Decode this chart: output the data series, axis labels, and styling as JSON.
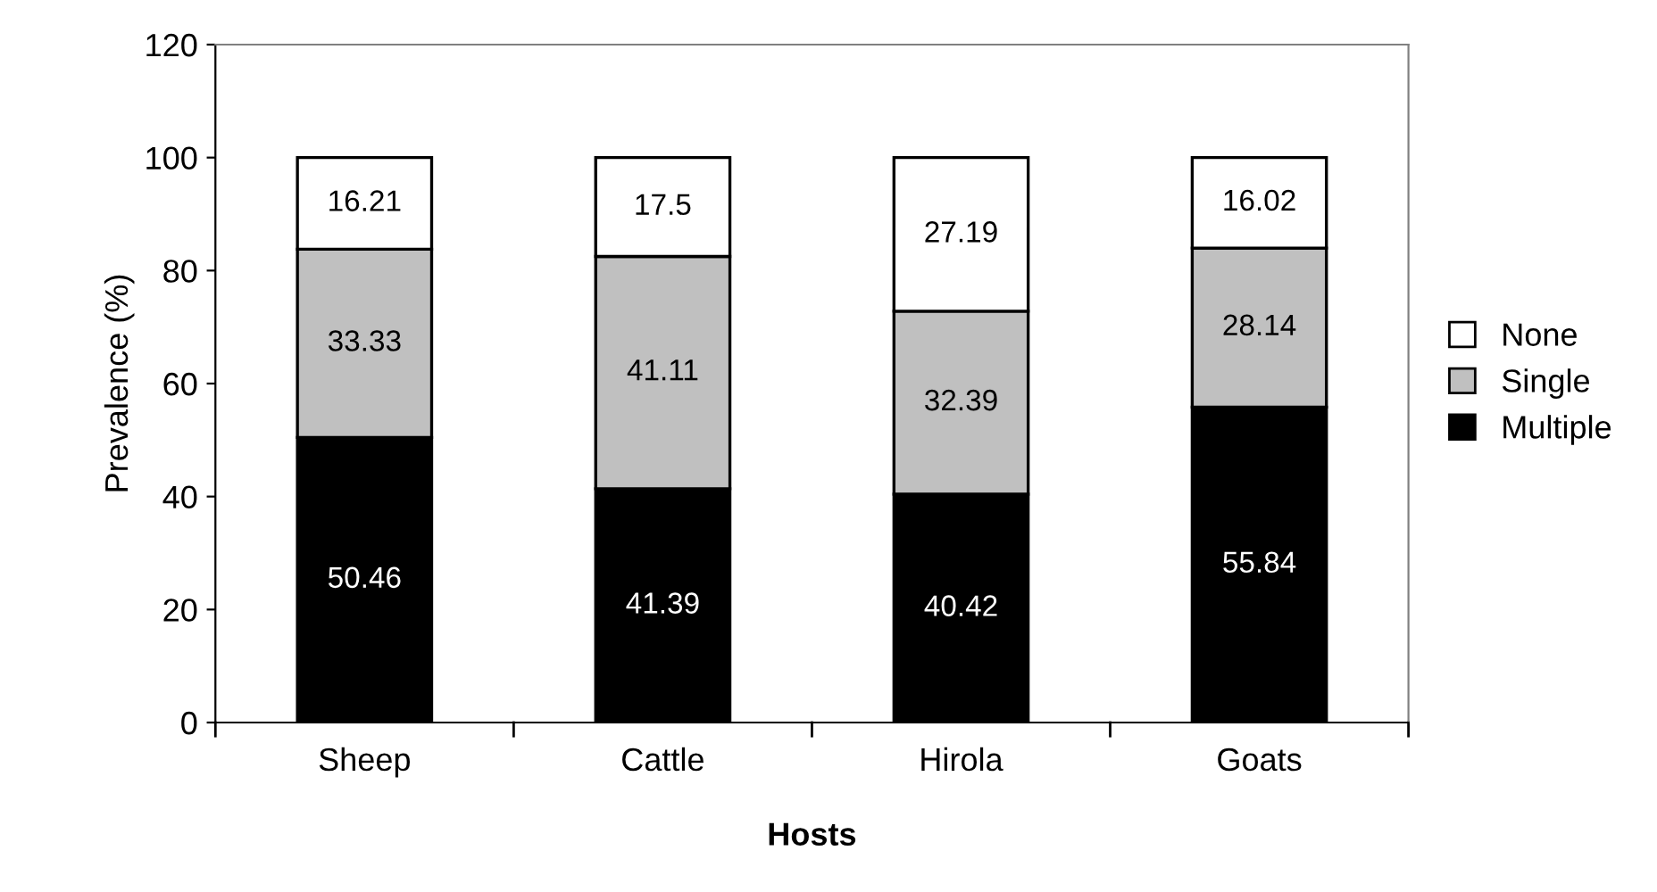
{
  "chart_data": {
    "type": "bar",
    "stacked": true,
    "xlabel": "Hosts",
    "ylabel": "Prevalence (%)",
    "categories": [
      "Sheep",
      "Cattle",
      "Hirola",
      "Goats"
    ],
    "series": [
      {
        "name": "Multiple",
        "color": "#000000",
        "values": [
          50.46,
          41.39,
          40.42,
          55.84
        ]
      },
      {
        "name": "Single",
        "color": "#c0c0c0",
        "values": [
          33.33,
          41.11,
          32.39,
          28.14
        ]
      },
      {
        "name": "None",
        "color": "#ffffff",
        "values": [
          16.21,
          17.5,
          27.19,
          16.02
        ]
      }
    ],
    "ylim": [
      0,
      120
    ],
    "yticks": [
      0,
      20,
      40,
      60,
      80,
      100,
      120
    ],
    "data_labels": true,
    "legend": "right",
    "grid": false
  }
}
